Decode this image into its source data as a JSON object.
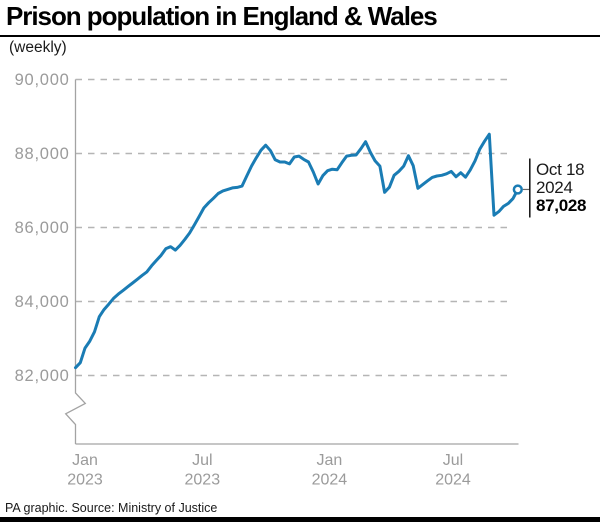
{
  "header": {
    "title": "Prison population in England & Wales",
    "subtitle": "(weekly)"
  },
  "chart_data": {
    "type": "line",
    "title": "Prison population in England & Wales",
    "subtitle": "(weekly)",
    "ylabel": "",
    "xlabel": "",
    "ylim": [
      82000,
      90000
    ],
    "grid": "horizontal-dashed",
    "legend": "none",
    "axis_break_below": 82000,
    "line_color": "#1a7cb4",
    "yticks": [
      {
        "value": 90000,
        "label": "90,000"
      },
      {
        "value": 88000,
        "label": "88,000"
      },
      {
        "value": 86000,
        "label": "86,000"
      },
      {
        "value": 84000,
        "label": "84,000"
      },
      {
        "value": 82000,
        "label": "82,000"
      }
    ],
    "xticks": [
      {
        "month": "Jan",
        "year": "2023"
      },
      {
        "month": "Jul",
        "year": "2023"
      },
      {
        "month": "Jan",
        "year": "2024"
      },
      {
        "month": "Jul",
        "year": "2024"
      }
    ],
    "series": [
      {
        "name": "Prison population (weekly)",
        "dates": [
          "2023-01-06",
          "2023-01-13",
          "2023-01-20",
          "2023-01-27",
          "2023-02-03",
          "2023-02-10",
          "2023-02-17",
          "2023-02-24",
          "2023-03-03",
          "2023-03-10",
          "2023-03-17",
          "2023-03-24",
          "2023-03-31",
          "2023-04-07",
          "2023-04-14",
          "2023-04-21",
          "2023-04-28",
          "2023-05-05",
          "2023-05-12",
          "2023-05-19",
          "2023-05-26",
          "2023-06-02",
          "2023-06-09",
          "2023-06-16",
          "2023-06-23",
          "2023-06-30",
          "2023-07-07",
          "2023-07-14",
          "2023-07-21",
          "2023-07-28",
          "2023-08-04",
          "2023-08-11",
          "2023-08-18",
          "2023-08-25",
          "2023-09-01",
          "2023-09-08",
          "2023-09-15",
          "2023-09-22",
          "2023-09-29",
          "2023-10-06",
          "2023-10-13",
          "2023-10-20",
          "2023-10-27",
          "2023-11-03",
          "2023-11-10",
          "2023-11-17",
          "2023-11-24",
          "2023-12-01",
          "2023-12-08",
          "2023-12-15",
          "2023-12-22",
          "2023-12-29",
          "2024-01-05",
          "2024-01-12",
          "2024-01-19",
          "2024-01-26",
          "2024-02-02",
          "2024-02-09",
          "2024-02-16",
          "2024-02-23",
          "2024-03-01",
          "2024-03-08",
          "2024-03-15",
          "2024-03-22",
          "2024-03-29",
          "2024-04-05",
          "2024-04-12",
          "2024-04-19",
          "2024-04-26",
          "2024-05-03",
          "2024-05-10",
          "2024-05-17",
          "2024-05-24",
          "2024-05-31",
          "2024-06-07",
          "2024-06-14",
          "2024-06-21",
          "2024-06-28",
          "2024-07-05",
          "2024-07-12",
          "2024-07-19",
          "2024-07-26",
          "2024-08-02",
          "2024-08-09",
          "2024-08-16",
          "2024-08-23",
          "2024-08-30",
          "2024-09-06",
          "2024-09-13",
          "2024-09-20",
          "2024-09-27",
          "2024-10-04",
          "2024-10-11",
          "2024-10-18"
        ],
        "values": [
          82210,
          82345,
          82740,
          82930,
          83180,
          83590,
          83780,
          83930,
          84085,
          84200,
          84300,
          84400,
          84500,
          84600,
          84705,
          84800,
          84965,
          85110,
          85250,
          85430,
          85480,
          85390,
          85520,
          85680,
          85850,
          86070,
          86300,
          86530,
          86670,
          86790,
          86920,
          86990,
          87030,
          87070,
          87085,
          87120,
          87390,
          87660,
          87880,
          88090,
          88225,
          88075,
          87830,
          87770,
          87770,
          87720,
          87905,
          87930,
          87840,
          87770,
          87500,
          87175,
          87400,
          87535,
          87575,
          87560,
          87750,
          87930,
          87950,
          87960,
          88130,
          88320,
          88030,
          87800,
          87660,
          86950,
          87090,
          87410,
          87520,
          87660,
          87940,
          87670,
          87060,
          87160,
          87260,
          87355,
          87392,
          87410,
          87450,
          87515,
          87370,
          87480,
          87360,
          87550,
          87800,
          88120,
          88330,
          88521,
          86333,
          86430,
          86570,
          86650,
          86780,
          87028
        ]
      }
    ],
    "annotation": {
      "date_line1": "Oct 18",
      "date_line2": "2024",
      "value_label": "87,028",
      "value": 87028
    }
  },
  "footer": {
    "source": "PA graphic. Source: Ministry of Justice"
  }
}
